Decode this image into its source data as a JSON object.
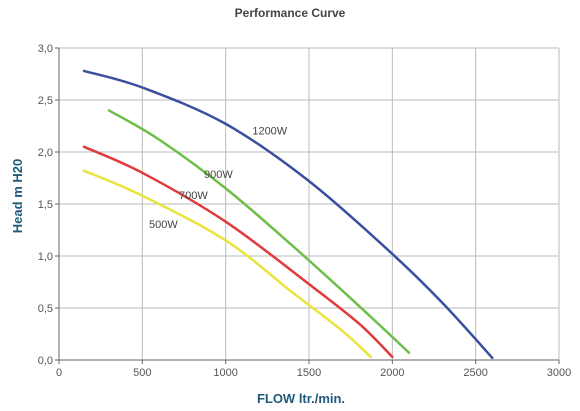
{
  "chart_data": {
    "type": "line",
    "title": "Performance Curve",
    "xlabel": "FLOW ltr./min.",
    "ylabel": "Head m H20",
    "xlim": [
      0,
      3000
    ],
    "ylim": [
      0,
      3.0
    ],
    "xticks": [
      0,
      500,
      1000,
      1500,
      2000,
      2500,
      3000
    ],
    "xtick_labels": [
      "0",
      "500",
      "1000",
      "1500",
      "2000",
      "2500",
      "3000"
    ],
    "yticks": [
      0,
      0.5,
      1.0,
      1.5,
      2.0,
      2.5,
      3.0
    ],
    "ytick_labels": [
      "0,0",
      "0,5",
      "1,0",
      "1,5",
      "2,0",
      "2,5",
      "3,0"
    ],
    "grid": true,
    "legend": "inline-labels",
    "series": [
      {
        "name": "1200W",
        "color": "#3b4fa0",
        "label_at": [
          1160,
          2.17
        ],
        "points": [
          [
            150,
            2.78
          ],
          [
            500,
            2.62
          ],
          [
            1000,
            2.27
          ],
          [
            1500,
            1.72
          ],
          [
            2000,
            1.02
          ],
          [
            2300,
            0.55
          ],
          [
            2600,
            0.02
          ]
        ]
      },
      {
        "name": "900W",
        "color": "#6cbf4a",
        "label_at": [
          870,
          1.75
        ],
        "points": [
          [
            300,
            2.4
          ],
          [
            600,
            2.12
          ],
          [
            1000,
            1.65
          ],
          [
            1400,
            1.1
          ],
          [
            1800,
            0.52
          ],
          [
            2100,
            0.07
          ]
        ]
      },
      {
        "name": "700W",
        "color": "#e03a3a",
        "label_at": [
          720,
          1.55
        ],
        "points": [
          [
            150,
            2.05
          ],
          [
            500,
            1.8
          ],
          [
            1000,
            1.33
          ],
          [
            1500,
            0.73
          ],
          [
            1800,
            0.35
          ],
          [
            2000,
            0.03
          ]
        ]
      },
      {
        "name": "500W",
        "color": "#e8e43c",
        "label_at": [
          540,
          1.27
        ],
        "points": [
          [
            150,
            1.82
          ],
          [
            500,
            1.58
          ],
          [
            1000,
            1.15
          ],
          [
            1400,
            0.65
          ],
          [
            1700,
            0.28
          ],
          [
            1870,
            0.03
          ]
        ]
      }
    ]
  }
}
